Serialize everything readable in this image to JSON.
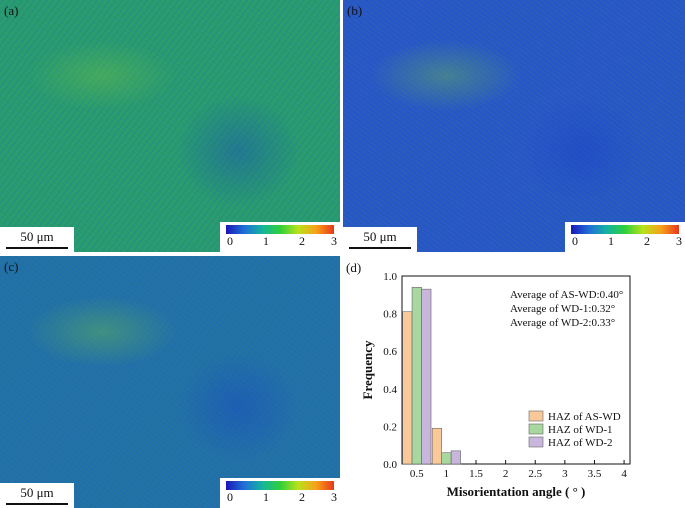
{
  "panels": [
    {
      "id": "a",
      "label": "(a)",
      "scalebar": "50 μm",
      "colorbar_ticks": [
        "0",
        "1",
        "2",
        "3"
      ]
    },
    {
      "id": "b",
      "label": "(b)",
      "scalebar": "50 μm",
      "colorbar_ticks": [
        "0",
        "1",
        "2",
        "3"
      ]
    },
    {
      "id": "c",
      "label": "(c)",
      "scalebar": "50 μm",
      "colorbar_ticks": [
        "0",
        "1",
        "2",
        "3"
      ]
    }
  ],
  "colors": {
    "colorbar": [
      "#1b17b8",
      "#1f6fd8",
      "#14b3a0",
      "#2fcf3c",
      "#b8e21a",
      "#f7a21b",
      "#e8361b"
    ],
    "series": [
      "#f9c99a",
      "#a8d8a0",
      "#c8b6dd"
    ]
  },
  "chart_data": {
    "type": "bar",
    "panel_label": "(d)",
    "xlabel": "Misorientation angle ( ° )",
    "ylabel": "Frequency",
    "xlim": [
      0.25,
      4.1
    ],
    "ylim": [
      0,
      1.0
    ],
    "x_ticks": [
      "0.5",
      "1",
      "1.5",
      "2",
      "2.5",
      "3",
      "3.5",
      "4"
    ],
    "y_ticks": [
      "0.0",
      "0.2",
      "0.4",
      "0.6",
      "0.8",
      "1.0"
    ],
    "categories": [
      0.5,
      1.0
    ],
    "series": [
      {
        "name": "HAZ of AS-WD",
        "values": [
          0.81,
          0.19
        ]
      },
      {
        "name": "HAZ of WD-1",
        "values": [
          0.94,
          0.06
        ]
      },
      {
        "name": "HAZ of WD-2",
        "values": [
          0.93,
          0.07
        ]
      }
    ],
    "annotations": [
      "Average of AS-WD:0.40°",
      "Average of WD-1:0.32°",
      "Average of WD-2:0.33°"
    ],
    "legend_position": "bottom-right",
    "grid": false
  }
}
